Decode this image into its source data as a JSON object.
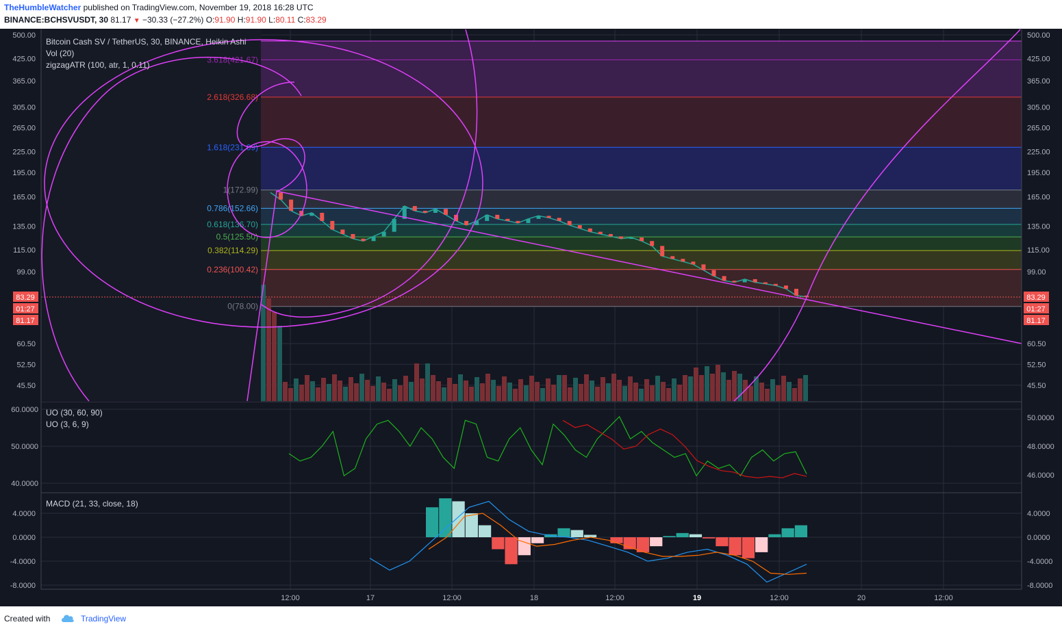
{
  "header": {
    "author": "TheHumbleWatcher",
    "published_text": "published on TradingView.com, November 19, 2018 16:28 UTC",
    "symbol": "BINANCE:BCHSVUSDT, 30",
    "last": "81.17",
    "change": "−30.33 (−27.2%)",
    "o_label": "O:",
    "o_value": "91.90",
    "h_label": "H:",
    "h_value": "91.90",
    "l_label": "L:",
    "l_value": "80.11",
    "c_label": "C:",
    "c_value": "83.29"
  },
  "footer": {
    "created_with": "Created with",
    "brand": "TradingView"
  },
  "legend": {
    "main": "Bitcoin Cash SV / TetherUS, 30, BINANCE, Heikin Ashi",
    "vol": "Vol (20)",
    "zigzag": "zigzagATR (100, atr, 1, 0.11)",
    "uo1": "UO (30, 60, 90)",
    "uo2": "UO (3, 6, 9)",
    "macd": "MACD (21, 33, close, 18)"
  },
  "chart_data": {
    "type": "line",
    "colors": {
      "background": "#131722",
      "up": "#26a69a",
      "down": "#ef5350",
      "drawing": "#e040fb",
      "uo_fast": "#1db21d",
      "uo_slow": "#d11414",
      "macd": "#2196f3",
      "signal": "#ff6d00"
    },
    "price_axis": {
      "ticks": [
        "500.00",
        "425.00",
        "365.00",
        "305.00",
        "265.00",
        "225.00",
        "195.00",
        "165.00",
        "135.00",
        "115.00",
        "99.00",
        "60.50",
        "52.50",
        "45.50"
      ],
      "tick_values": [
        500,
        425,
        365,
        305,
        265,
        225,
        195,
        165,
        135,
        115,
        99,
        60.5,
        52.5,
        45.5
      ],
      "scale": "log",
      "current_price": "83.29",
      "countdown": "01:27",
      "last": "81.17"
    },
    "time_axis": {
      "ticks": [
        "12:00",
        "17",
        "12:00",
        "18",
        "12:00",
        "19",
        "12:00",
        "20",
        "12:00"
      ],
      "bold_tick": "19"
    },
    "fibonacci": [
      {
        "label": "3.618(421.67)",
        "level": 421.67,
        "color": "#9c27b0"
      },
      {
        "label": "2.618(326.68)",
        "level": 326.68,
        "color": "#e53935"
      },
      {
        "label": "1.618(231.69)",
        "level": 231.69,
        "color": "#2962ff"
      },
      {
        "label": "1(172.99)",
        "level": 172.99,
        "color": "#787b86"
      },
      {
        "label": "0.786(152.66)",
        "level": 152.66,
        "color": "#42a5f5"
      },
      {
        "label": "0.618(136.70)",
        "level": 136.7,
        "color": "#26a69a"
      },
      {
        "label": "0.5(125.50)",
        "level": 125.5,
        "color": "#4caf50"
      },
      {
        "label": "0.382(114.29)",
        "level": 114.29,
        "color": "#aeb51b"
      },
      {
        "label": "0.236(100.42)",
        "level": 100.42,
        "color": "#ef5350"
      },
      {
        "label": "0(78.00)",
        "level": 78.0,
        "color": "#787b86"
      }
    ],
    "price_series": [
      170,
      162,
      150,
      145,
      148,
      140,
      132,
      128,
      124,
      122,
      126,
      130,
      142,
      155,
      150,
      148,
      152,
      146,
      140,
      136,
      140,
      146,
      142,
      140,
      138,
      142,
      145,
      143,
      140,
      136,
      133,
      130,
      128,
      126,
      124,
      125,
      122,
      118,
      110,
      108,
      106,
      104,
      100,
      96,
      93,
      92,
      94,
      92,
      91,
      90,
      88,
      84,
      83.29
    ],
    "uo_axis_left": [
      "60.0000",
      "50.0000",
      "40.0000"
    ],
    "uo_axis_right": [
      "50.0000",
      "48.0000",
      "46.0000"
    ],
    "uo_fast": [
      48,
      46,
      47,
      50,
      54,
      42,
      44,
      52,
      56,
      57,
      54,
      50,
      55,
      52,
      47,
      44,
      57,
      56,
      47,
      46,
      52,
      55,
      49,
      45,
      56,
      53,
      49,
      47,
      52,
      55,
      58,
      52,
      54,
      51,
      49,
      47,
      48,
      42,
      46,
      44,
      45,
      42,
      47,
      49,
      46,
      48,
      48.5,
      42.5
    ],
    "uo_slow": [
      49.8,
      49.3,
      49.5,
      49.0,
      48.5,
      47.8,
      48.0,
      48.8,
      49.2,
      48.8,
      48.0,
      47.0,
      46.6,
      46.3,
      46.2,
      45.9,
      45.8,
      45.9,
      45.8,
      46.1,
      45.9
    ],
    "macd_axis": [
      "4.0000",
      "0.0000",
      "-4.0000",
      "-8.0000"
    ],
    "macd_hist": [
      5,
      6.5,
      6,
      4,
      2,
      -2,
      -4.5,
      -3,
      -1,
      0.5,
      1.5,
      1.2,
      0.4,
      0,
      -1,
      -2,
      -2.5,
      -1.5,
      0.2,
      0.7,
      0.5,
      -0.2,
      -1.5,
      -3,
      -3.5,
      -2.5,
      0.5,
      1.5,
      2
    ],
    "macd_line": [
      -3.5,
      -5.5,
      -4,
      -1,
      2,
      5,
      6,
      3,
      1,
      0.3,
      0,
      -0.5,
      -1.5,
      -2.5,
      -4,
      -3.5,
      -2.5,
      -2,
      -3,
      -4.5,
      -7.5,
      -6,
      -4.5
    ],
    "signal_line": [
      -2,
      0,
      3.5,
      4,
      2,
      -0.5,
      -1.5,
      -1.2,
      -0.5,
      0,
      -0.5,
      -1.5,
      -2.5,
      -3.2,
      -3.2,
      -3,
      -2.5,
      -3,
      -4,
      -6,
      -6.2,
      -6
    ]
  }
}
